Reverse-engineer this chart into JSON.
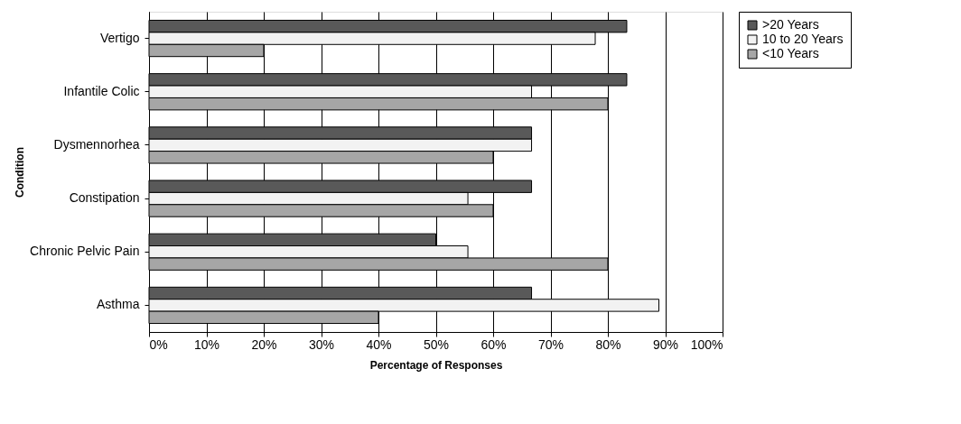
{
  "chart_data": {
    "type": "bar",
    "orientation": "horizontal",
    "xlabel": "Percentage of Responses",
    "ylabel": "Condition",
    "categories": [
      "Vertigo",
      "Infantile Colic",
      "Dysmennorhea",
      "Constipation",
      "Chronic Pelvic Pain",
      "Asthma"
    ],
    "series": [
      {
        "name": ">20 Years",
        "color": "#595959",
        "values": [
          83.3,
          83.3,
          66.7,
          66.7,
          50,
          66.7
        ]
      },
      {
        "name": "10 to 20 Years",
        "color": "#f2f2f2",
        "values": [
          77.8,
          66.7,
          66.7,
          55.6,
          55.6,
          88.9
        ]
      },
      {
        "name": "<10 Years",
        "color": "#a6a6a6",
        "values": [
          20,
          80,
          60,
          60,
          80,
          40
        ]
      }
    ],
    "xlim": [
      0,
      100
    ],
    "xticks": [
      {
        "value": 0,
        "label": "0%"
      },
      {
        "value": 10,
        "label": "10%"
      },
      {
        "value": 20,
        "label": "20%"
      },
      {
        "value": 30,
        "label": "30%"
      },
      {
        "value": 40,
        "label": "40%"
      },
      {
        "value": 50,
        "label": "50%"
      },
      {
        "value": 60,
        "label": "60%"
      },
      {
        "value": 70,
        "label": "70%"
      },
      {
        "value": 80,
        "label": "80%"
      },
      {
        "value": 90,
        "label": "90%"
      },
      {
        "value": 100,
        "label": "100%"
      }
    ],
    "grid": "x",
    "legend": "right"
  }
}
